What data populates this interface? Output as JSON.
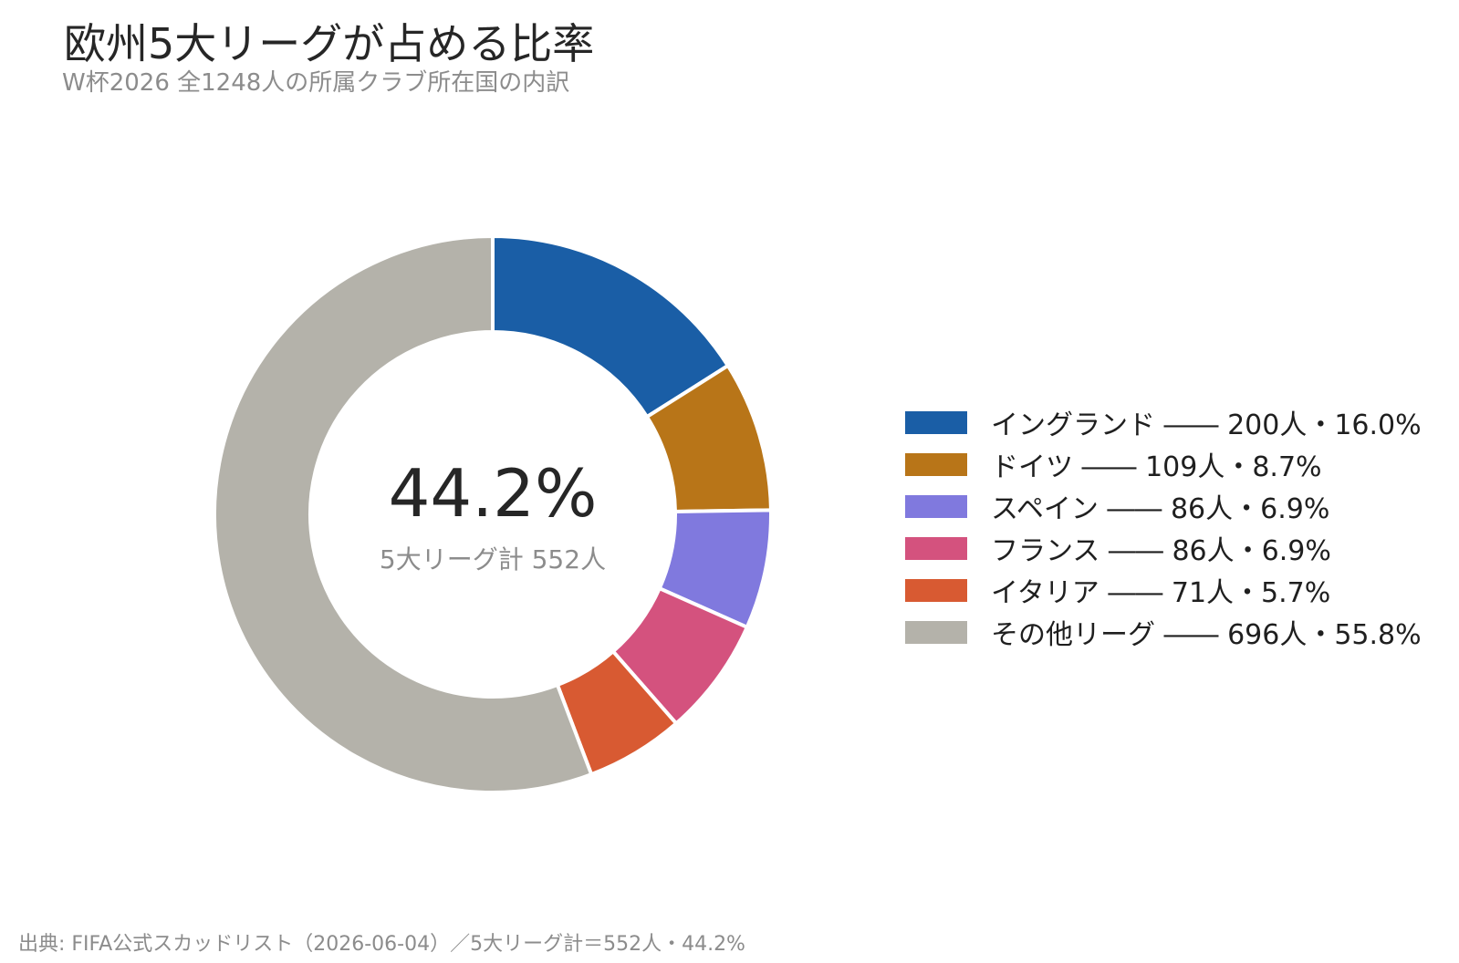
{
  "title": "欧州5大リーグが占める比率",
  "subtitle": "W杯2026 全1248人の所属クラブ所在国の内訳",
  "source": "出典: FIFA公式スカッドリスト（2026-06-04）／5大リーグ計＝552人・44.2%",
  "chart_data": {
    "type": "pie",
    "variant": "donut",
    "categories": [
      "イングランド",
      "ドイツ",
      "スペイン",
      "フランス",
      "イタリア",
      "その他リーグ"
    ],
    "values": [
      200,
      109,
      86,
      86,
      71,
      696
    ],
    "percent": [
      16.0,
      8.7,
      6.9,
      6.9,
      5.7,
      55.8
    ],
    "colors": [
      "#1a5ea6",
      "#b87518",
      "#8079de",
      "#d4527e",
      "#d85a32",
      "#b4b2aa"
    ],
    "center_value": "44.2%",
    "center_label": "5大リーグ計 552人",
    "legend_position": "right",
    "legend": [
      "イングランド ―― 200人・16.0%",
      "ドイツ ―― 109人・8.7%",
      "スペイン ―― 86人・6.9%",
      "フランス ―― 86人・6.9%",
      "イタリア ―― 71人・5.7%",
      "その他リーグ ―― 696人・55.8%"
    ]
  }
}
